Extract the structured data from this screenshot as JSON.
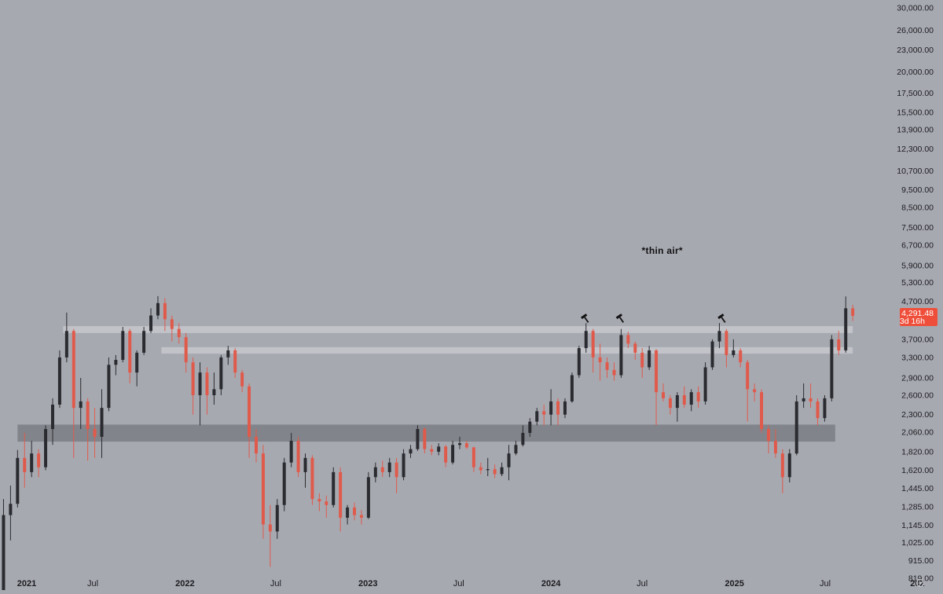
{
  "chart_data": {
    "type": "candlestick",
    "title": "",
    "y_scale": "log",
    "ylim": [
      760,
      31500
    ],
    "xlim": [
      "2020-12-28",
      "2026-01-05"
    ],
    "colors": {
      "background": "#a7a9b1",
      "up_candle": "#2a2b30",
      "down_candle": "#e05a4b",
      "resistance_band": "#c6c8ce",
      "support_band": "#7d7f86",
      "price_tag": "#ef4f3a",
      "annotation": "#111111"
    },
    "y_ticks": [
      {
        "value": 30000,
        "label": "30,000.00"
      },
      {
        "value": 26000,
        "label": "26,000.00"
      },
      {
        "value": 23000,
        "label": "23,000.00"
      },
      {
        "value": 20000,
        "label": "20,000.00"
      },
      {
        "value": 17500,
        "label": "17,500.00"
      },
      {
        "value": 15500,
        "label": "15,500.00"
      },
      {
        "value": 13900,
        "label": "13,900.00"
      },
      {
        "value": 12300,
        "label": "12,300.00"
      },
      {
        "value": 10700,
        "label": "10,700.00"
      },
      {
        "value": 9500,
        "label": "9,500.00"
      },
      {
        "value": 8500,
        "label": "8,500.00"
      },
      {
        "value": 7500,
        "label": "7,500.00"
      },
      {
        "value": 6700,
        "label": "6,700.00"
      },
      {
        "value": 5900,
        "label": "5,900.00"
      },
      {
        "value": 5300,
        "label": "5,300.00"
      },
      {
        "value": 4700,
        "label": "4,700.00"
      },
      {
        "value": 3700,
        "label": "3,700.00"
      },
      {
        "value": 3300,
        "label": "3,300.00"
      },
      {
        "value": 2900,
        "label": "2,900.00"
      },
      {
        "value": 2600,
        "label": "2,600.00"
      },
      {
        "value": 2300,
        "label": "2,300.00"
      },
      {
        "value": 2060,
        "label": "2,060.00"
      },
      {
        "value": 1820,
        "label": "1,820.00"
      },
      {
        "value": 1620,
        "label": "1,620.00"
      },
      {
        "value": 1445,
        "label": "1,445.00"
      },
      {
        "value": 1285,
        "label": "1,285.00"
      },
      {
        "value": 1145,
        "label": "1,145.00"
      },
      {
        "value": 1025,
        "label": "1,025.00"
      },
      {
        "value": 915,
        "label": "915.00"
      },
      {
        "value": 819,
        "label": "819.00"
      }
    ],
    "x_ticks": [
      {
        "date": "2021-01-01",
        "label": "2021",
        "major": true
      },
      {
        "date": "2021-07-01",
        "label": "Jul",
        "major": false
      },
      {
        "date": "2022-01-01",
        "label": "2022",
        "major": true
      },
      {
        "date": "2022-07-01",
        "label": "Jul",
        "major": false
      },
      {
        "date": "2023-01-01",
        "label": "2023",
        "major": true
      },
      {
        "date": "2023-07-01",
        "label": "Jul",
        "major": false
      },
      {
        "date": "2024-01-01",
        "label": "2024",
        "major": true
      },
      {
        "date": "2024-07-01",
        "label": "Jul",
        "major": false
      },
      {
        "date": "2025-01-01",
        "label": "2025",
        "major": true
      },
      {
        "date": "2025-07-01",
        "label": "Jul",
        "major": false
      },
      {
        "date": "2026-01-01",
        "label": "202",
        "major": true
      }
    ],
    "current_price": {
      "value": 4291.48,
      "label": "4,291.48",
      "countdown": "3d 16h"
    },
    "bands": [
      {
        "name": "resistance-upper",
        "low": 3850,
        "high": 4020,
        "from": "2021-05-03",
        "to": "2025-08-25"
      },
      {
        "name": "resistance-lower",
        "low": 3380,
        "high": 3520,
        "from": "2021-11-15",
        "to": "2025-08-25"
      },
      {
        "name": "support",
        "low": 1940,
        "high": 2160,
        "from": "2021-02-01",
        "to": "2025-07-21"
      }
    ],
    "annotations": [
      {
        "text": "*thin air*",
        "date": "2024-08-10",
        "value": 6350
      },
      {
        "marker": "hammer",
        "date": "2024-03-11",
        "value": 4200
      },
      {
        "marker": "hammer",
        "date": "2024-05-20",
        "value": 4200
      },
      {
        "marker": "hammer",
        "date": "2024-12-09",
        "value": 4200
      }
    ],
    "candles": [
      {
        "t": "2021-01-04",
        "o": 730,
        "h": 1350,
        "l": 720,
        "c": 1220
      },
      {
        "t": "2021-01-18",
        "o": 1220,
        "h": 1470,
        "l": 1040,
        "c": 1310
      },
      {
        "t": "2021-02-01",
        "o": 1310,
        "h": 1840,
        "l": 1280,
        "c": 1750
      },
      {
        "t": "2021-02-15",
        "o": 1750,
        "h": 2050,
        "l": 1450,
        "c": 1600
      },
      {
        "t": "2021-03-01",
        "o": 1600,
        "h": 1950,
        "l": 1550,
        "c": 1800
      },
      {
        "t": "2021-03-15",
        "o": 1800,
        "h": 1850,
        "l": 1550,
        "c": 1650
      },
      {
        "t": "2021-03-29",
        "o": 1650,
        "h": 2150,
        "l": 1620,
        "c": 2100
      },
      {
        "t": "2021-04-12",
        "o": 2100,
        "h": 2550,
        "l": 1900,
        "c": 2450
      },
      {
        "t": "2021-04-26",
        "o": 2450,
        "h": 3450,
        "l": 2400,
        "c": 3300
      },
      {
        "t": "2021-05-10",
        "o": 3300,
        "h": 4380,
        "l": 3200,
        "c": 3900
      },
      {
        "t": "2021-05-24",
        "o": 3900,
        "h": 3950,
        "l": 1750,
        "c": 2400
      },
      {
        "t": "2021-06-07",
        "o": 2400,
        "h": 2900,
        "l": 2100,
        "c": 2500
      },
      {
        "t": "2021-06-21",
        "o": 2500,
        "h": 2550,
        "l": 1720,
        "c": 2100
      },
      {
        "t": "2021-07-05",
        "o": 2100,
        "h": 2400,
        "l": 1750,
        "c": 2000
      },
      {
        "t": "2021-07-19",
        "o": 2000,
        "h": 2700,
        "l": 1750,
        "c": 2400
      },
      {
        "t": "2021-08-02",
        "o": 2400,
        "h": 3300,
        "l": 2350,
        "c": 3150
      },
      {
        "t": "2021-08-16",
        "o": 3150,
        "h": 3350,
        "l": 2950,
        "c": 3250
      },
      {
        "t": "2021-08-30",
        "o": 3250,
        "h": 4000,
        "l": 3200,
        "c": 3900
      },
      {
        "t": "2021-09-13",
        "o": 3900,
        "h": 3950,
        "l": 2800,
        "c": 3000
      },
      {
        "t": "2021-09-27",
        "o": 3000,
        "h": 3450,
        "l": 2750,
        "c": 3400
      },
      {
        "t": "2021-10-11",
        "o": 3400,
        "h": 4000,
        "l": 3350,
        "c": 3900
      },
      {
        "t": "2021-10-25",
        "o": 3900,
        "h": 4500,
        "l": 3850,
        "c": 4300
      },
      {
        "t": "2021-11-08",
        "o": 4300,
        "h": 4860,
        "l": 4200,
        "c": 4650
      },
      {
        "t": "2021-11-22",
        "o": 4650,
        "h": 4800,
        "l": 3900,
        "c": 4200
      },
      {
        "t": "2021-12-06",
        "o": 4200,
        "h": 4300,
        "l": 3650,
        "c": 3950
      },
      {
        "t": "2021-12-20",
        "o": 3950,
        "h": 4100,
        "l": 3600,
        "c": 3750
      },
      {
        "t": "2022-01-03",
        "o": 3750,
        "h": 3850,
        "l": 3000,
        "c": 3200
      },
      {
        "t": "2022-01-17",
        "o": 3200,
        "h": 3300,
        "l": 2300,
        "c": 2600
      },
      {
        "t": "2022-01-31",
        "o": 2600,
        "h": 3200,
        "l": 2150,
        "c": 3000
      },
      {
        "t": "2022-02-14",
        "o": 3000,
        "h": 3100,
        "l": 2300,
        "c": 2600
      },
      {
        "t": "2022-02-28",
        "o": 2600,
        "h": 3000,
        "l": 2450,
        "c": 2700
      },
      {
        "t": "2022-03-14",
        "o": 2700,
        "h": 3350,
        "l": 2600,
        "c": 3300
      },
      {
        "t": "2022-03-28",
        "o": 3300,
        "h": 3550,
        "l": 3150,
        "c": 3450
      },
      {
        "t": "2022-04-11",
        "o": 3450,
        "h": 3500,
        "l": 2900,
        "c": 3000
      },
      {
        "t": "2022-04-25",
        "o": 3000,
        "h": 3050,
        "l": 2650,
        "c": 2750
      },
      {
        "t": "2022-05-09",
        "o": 2750,
        "h": 2800,
        "l": 1750,
        "c": 2000
      },
      {
        "t": "2022-05-23",
        "o": 2000,
        "h": 2100,
        "l": 1700,
        "c": 1800
      },
      {
        "t": "2022-06-06",
        "o": 1800,
        "h": 1900,
        "l": 1050,
        "c": 1150
      },
      {
        "t": "2022-06-20",
        "o": 1150,
        "h": 1300,
        "l": 880,
        "c": 1100
      },
      {
        "t": "2022-07-04",
        "o": 1100,
        "h": 1350,
        "l": 1050,
        "c": 1300
      },
      {
        "t": "2022-07-18",
        "o": 1300,
        "h": 1750,
        "l": 1250,
        "c": 1700
      },
      {
        "t": "2022-08-01",
        "o": 1700,
        "h": 2050,
        "l": 1650,
        "c": 1950
      },
      {
        "t": "2022-08-15",
        "o": 1950,
        "h": 2000,
        "l": 1550,
        "c": 1600
      },
      {
        "t": "2022-08-29",
        "o": 1600,
        "h": 1800,
        "l": 1450,
        "c": 1750
      },
      {
        "t": "2022-09-12",
        "o": 1750,
        "h": 1780,
        "l": 1300,
        "c": 1350
      },
      {
        "t": "2022-09-26",
        "o": 1350,
        "h": 1400,
        "l": 1250,
        "c": 1330
      },
      {
        "t": "2022-10-10",
        "o": 1330,
        "h": 1380,
        "l": 1200,
        "c": 1300
      },
      {
        "t": "2022-10-24",
        "o": 1300,
        "h": 1650,
        "l": 1280,
        "c": 1600
      },
      {
        "t": "2022-11-07",
        "o": 1600,
        "h": 1650,
        "l": 1100,
        "c": 1200
      },
      {
        "t": "2022-11-21",
        "o": 1200,
        "h": 1300,
        "l": 1150,
        "c": 1280
      },
      {
        "t": "2022-12-05",
        "o": 1280,
        "h": 1320,
        "l": 1180,
        "c": 1220
      },
      {
        "t": "2022-12-19",
        "o": 1220,
        "h": 1260,
        "l": 1150,
        "c": 1200
      },
      {
        "t": "2023-01-02",
        "o": 1200,
        "h": 1600,
        "l": 1190,
        "c": 1550
      },
      {
        "t": "2023-01-16",
        "o": 1550,
        "h": 1700,
        "l": 1500,
        "c": 1650
      },
      {
        "t": "2023-01-30",
        "o": 1650,
        "h": 1720,
        "l": 1550,
        "c": 1600
      },
      {
        "t": "2023-02-13",
        "o": 1600,
        "h": 1750,
        "l": 1550,
        "c": 1700
      },
      {
        "t": "2023-02-27",
        "o": 1700,
        "h": 1750,
        "l": 1400,
        "c": 1550
      },
      {
        "t": "2023-03-13",
        "o": 1550,
        "h": 1850,
        "l": 1520,
        "c": 1800
      },
      {
        "t": "2023-03-27",
        "o": 1800,
        "h": 1900,
        "l": 1750,
        "c": 1850
      },
      {
        "t": "2023-04-10",
        "o": 1850,
        "h": 2150,
        "l": 1830,
        "c": 2100
      },
      {
        "t": "2023-04-24",
        "o": 2100,
        "h": 2120,
        "l": 1800,
        "c": 1850
      },
      {
        "t": "2023-05-08",
        "o": 1850,
        "h": 1900,
        "l": 1780,
        "c": 1820
      },
      {
        "t": "2023-05-22",
        "o": 1820,
        "h": 1920,
        "l": 1780,
        "c": 1880
      },
      {
        "t": "2023-06-05",
        "o": 1880,
        "h": 1900,
        "l": 1650,
        "c": 1700
      },
      {
        "t": "2023-06-19",
        "o": 1700,
        "h": 1950,
        "l": 1680,
        "c": 1900
      },
      {
        "t": "2023-07-03",
        "o": 1900,
        "h": 2000,
        "l": 1850,
        "c": 1920
      },
      {
        "t": "2023-07-17",
        "o": 1920,
        "h": 1950,
        "l": 1850,
        "c": 1870
      },
      {
        "t": "2023-07-31",
        "o": 1870,
        "h": 1880,
        "l": 1600,
        "c": 1650
      },
      {
        "t": "2023-08-14",
        "o": 1650,
        "h": 1700,
        "l": 1580,
        "c": 1620
      },
      {
        "t": "2023-08-28",
        "o": 1620,
        "h": 1750,
        "l": 1560,
        "c": 1630
      },
      {
        "t": "2023-09-11",
        "o": 1630,
        "h": 1680,
        "l": 1540,
        "c": 1580
      },
      {
        "t": "2023-09-25",
        "o": 1580,
        "h": 1700,
        "l": 1560,
        "c": 1650
      },
      {
        "t": "2023-10-09",
        "o": 1650,
        "h": 1900,
        "l": 1520,
        "c": 1800
      },
      {
        "t": "2023-10-23",
        "o": 1800,
        "h": 1950,
        "l": 1780,
        "c": 1900
      },
      {
        "t": "2023-11-06",
        "o": 1900,
        "h": 2150,
        "l": 1880,
        "c": 2050
      },
      {
        "t": "2023-11-20",
        "o": 2050,
        "h": 2250,
        "l": 2000,
        "c": 2200
      },
      {
        "t": "2023-12-04",
        "o": 2200,
        "h": 2400,
        "l": 2150,
        "c": 2350
      },
      {
        "t": "2023-12-18",
        "o": 2350,
        "h": 2450,
        "l": 2150,
        "c": 2300
      },
      {
        "t": "2024-01-01",
        "o": 2300,
        "h": 2700,
        "l": 2150,
        "c": 2500
      },
      {
        "t": "2024-01-15",
        "o": 2500,
        "h": 2550,
        "l": 2150,
        "c": 2300
      },
      {
        "t": "2024-01-29",
        "o": 2300,
        "h": 2550,
        "l": 2250,
        "c": 2500
      },
      {
        "t": "2024-02-12",
        "o": 2500,
        "h": 3000,
        "l": 2480,
        "c": 2950
      },
      {
        "t": "2024-02-26",
        "o": 2950,
        "h": 3550,
        "l": 2900,
        "c": 3500
      },
      {
        "t": "2024-03-11",
        "o": 3500,
        "h": 4100,
        "l": 3400,
        "c": 3900
      },
      {
        "t": "2024-03-25",
        "o": 3900,
        "h": 3950,
        "l": 3000,
        "c": 3300
      },
      {
        "t": "2024-04-08",
        "o": 3300,
        "h": 3600,
        "l": 2850,
        "c": 3200
      },
      {
        "t": "2024-04-22",
        "o": 3200,
        "h": 3300,
        "l": 2900,
        "c": 3050
      },
      {
        "t": "2024-05-06",
        "o": 3050,
        "h": 3200,
        "l": 2850,
        "c": 2950
      },
      {
        "t": "2024-05-20",
        "o": 2950,
        "h": 3950,
        "l": 2900,
        "c": 3800
      },
      {
        "t": "2024-06-03",
        "o": 3800,
        "h": 3880,
        "l": 3500,
        "c": 3600
      },
      {
        "t": "2024-06-17",
        "o": 3600,
        "h": 3650,
        "l": 3250,
        "c": 3400
      },
      {
        "t": "2024-07-01",
        "o": 3400,
        "h": 3500,
        "l": 2900,
        "c": 3100
      },
      {
        "t": "2024-07-15",
        "o": 3100,
        "h": 3550,
        "l": 3050,
        "c": 3450
      },
      {
        "t": "2024-07-29",
        "o": 3450,
        "h": 3480,
        "l": 2150,
        "c": 2650
      },
      {
        "t": "2024-08-12",
        "o": 2650,
        "h": 2800,
        "l": 2500,
        "c": 2550
      },
      {
        "t": "2024-08-26",
        "o": 2550,
        "h": 2600,
        "l": 2300,
        "c": 2400
      },
      {
        "t": "2024-09-09",
        "o": 2400,
        "h": 2650,
        "l": 2200,
        "c": 2600
      },
      {
        "t": "2024-09-23",
        "o": 2600,
        "h": 2750,
        "l": 2400,
        "c": 2450
      },
      {
        "t": "2024-10-07",
        "o": 2450,
        "h": 2700,
        "l": 2350,
        "c": 2650
      },
      {
        "t": "2024-10-21",
        "o": 2650,
        "h": 2750,
        "l": 2400,
        "c": 2500
      },
      {
        "t": "2024-11-04",
        "o": 2500,
        "h": 3200,
        "l": 2450,
        "c": 3100
      },
      {
        "t": "2024-11-18",
        "o": 3100,
        "h": 3700,
        "l": 3050,
        "c": 3650
      },
      {
        "t": "2024-12-02",
        "o": 3650,
        "h": 4100,
        "l": 3500,
        "c": 3900
      },
      {
        "t": "2024-12-16",
        "o": 3900,
        "h": 3950,
        "l": 3100,
        "c": 3350
      },
      {
        "t": "2024-12-30",
        "o": 3350,
        "h": 3700,
        "l": 3300,
        "c": 3450
      },
      {
        "t": "2025-01-13",
        "o": 3450,
        "h": 3500,
        "l": 3100,
        "c": 3200
      },
      {
        "t": "2025-01-27",
        "o": 3200,
        "h": 3250,
        "l": 2200,
        "c": 2700
      },
      {
        "t": "2025-02-10",
        "o": 2700,
        "h": 2800,
        "l": 2500,
        "c": 2650
      },
      {
        "t": "2025-02-24",
        "o": 2650,
        "h": 2700,
        "l": 2050,
        "c": 2100
      },
      {
        "t": "2025-03-10",
        "o": 2100,
        "h": 2150,
        "l": 1800,
        "c": 1950
      },
      {
        "t": "2025-03-24",
        "o": 1950,
        "h": 2100,
        "l": 1750,
        "c": 1800
      },
      {
        "t": "2025-04-07",
        "o": 1800,
        "h": 1850,
        "l": 1400,
        "c": 1550
      },
      {
        "t": "2025-04-21",
        "o": 1550,
        "h": 1850,
        "l": 1500,
        "c": 1800
      },
      {
        "t": "2025-05-05",
        "o": 1800,
        "h": 2600,
        "l": 1780,
        "c": 2500
      },
      {
        "t": "2025-05-19",
        "o": 2500,
        "h": 2800,
        "l": 2400,
        "c": 2550
      },
      {
        "t": "2025-06-02",
        "o": 2550,
        "h": 2800,
        "l": 2400,
        "c": 2500
      },
      {
        "t": "2025-06-16",
        "o": 2500,
        "h": 2550,
        "l": 2150,
        "c": 2250
      },
      {
        "t": "2025-06-30",
        "o": 2250,
        "h": 2600,
        "l": 2200,
        "c": 2550
      },
      {
        "t": "2025-07-14",
        "o": 2550,
        "h": 3800,
        "l": 2500,
        "c": 3700
      },
      {
        "t": "2025-07-28",
        "o": 3700,
        "h": 3900,
        "l": 3350,
        "c": 3450
      },
      {
        "t": "2025-08-11",
        "o": 3450,
        "h": 4850,
        "l": 3400,
        "c": 4500
      },
      {
        "t": "2025-08-25",
        "o": 4500,
        "h": 4600,
        "l": 4150,
        "c": 4291.48
      }
    ]
  }
}
